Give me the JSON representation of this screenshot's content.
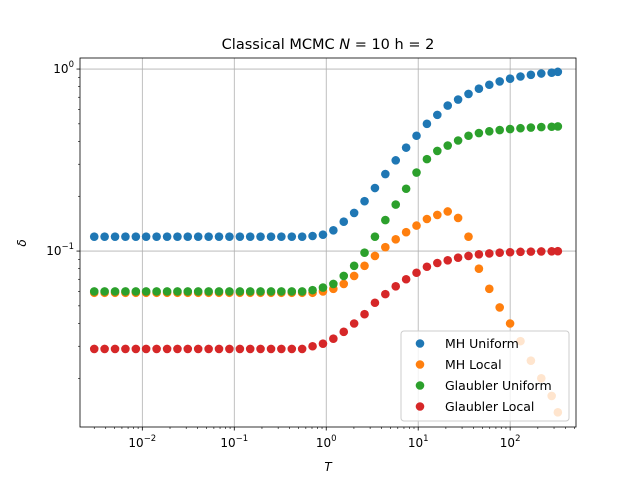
{
  "chart_data": {
    "type": "scatter",
    "title": "Classical MCMC N = 10 h = 2",
    "title_parts": {
      "prefix": "Classical MCMC ",
      "n_symbol": "N",
      "suffix": " =  10 h = 2"
    },
    "xlabel": "T",
    "ylabel": "δ",
    "xscale": "log",
    "yscale": "log",
    "xlim": [
      0.0021,
      520
    ],
    "ylim": [
      0.0108,
      1.15
    ],
    "grid": true,
    "legend_position": "lower-right",
    "x_ticks": [
      {
        "value": 0.01,
        "base": "10",
        "exp": "−2"
      },
      {
        "value": 0.1,
        "base": "10",
        "exp": "−1"
      },
      {
        "value": 1,
        "base": "10",
        "exp": "0"
      },
      {
        "value": 10,
        "base": "10",
        "exp": "1"
      },
      {
        "value": 100,
        "base": "10",
        "exp": "2"
      }
    ],
    "y_ticks": [
      {
        "value": 0.1,
        "base": "10",
        "exp": "−1"
      },
      {
        "value": 1,
        "base": "10",
        "exp": "0"
      }
    ],
    "x": [
      0.003,
      0.00389,
      0.00505,
      0.00655,
      0.0085,
      0.011,
      0.0143,
      0.0186,
      0.0241,
      0.0312,
      0.0405,
      0.0526,
      0.0682,
      0.0885,
      0.115,
      0.149,
      0.193,
      0.251,
      0.325,
      0.422,
      0.547,
      0.71,
      0.921,
      1.195,
      1.55,
      2.011,
      2.609,
      3.385,
      4.392,
      5.697,
      7.391,
      9.589,
      12.44,
      16.14,
      20.94,
      27.16,
      35.24,
      45.72,
      59.31,
      76.94,
      99.82,
      129.5,
      168.0,
      218.0,
      282.8,
      330.0
    ],
    "series": [
      {
        "name": "MH Uniform",
        "color": "#1f77b4",
        "values": [
          0.12,
          0.12,
          0.12,
          0.12,
          0.12,
          0.12,
          0.12,
          0.12,
          0.12,
          0.12,
          0.12,
          0.12,
          0.12,
          0.12,
          0.12,
          0.12,
          0.12,
          0.12,
          0.12,
          0.12,
          0.12,
          0.121,
          0.123,
          0.13,
          0.145,
          0.162,
          0.188,
          0.222,
          0.265,
          0.315,
          0.37,
          0.43,
          0.5,
          0.56,
          0.63,
          0.68,
          0.73,
          0.78,
          0.82,
          0.855,
          0.885,
          0.91,
          0.93,
          0.945,
          0.955,
          0.965
        ]
      },
      {
        "name": "MH Local",
        "color": "#ff7f0e",
        "values": [
          0.059,
          0.059,
          0.059,
          0.059,
          0.059,
          0.059,
          0.059,
          0.059,
          0.059,
          0.059,
          0.059,
          0.059,
          0.059,
          0.059,
          0.059,
          0.059,
          0.059,
          0.059,
          0.059,
          0.059,
          0.059,
          0.059,
          0.06,
          0.062,
          0.066,
          0.073,
          0.083,
          0.094,
          0.105,
          0.116,
          0.127,
          0.138,
          0.15,
          0.158,
          0.165,
          0.152,
          0.12,
          0.08,
          0.062,
          0.049,
          0.04,
          0.032,
          0.025,
          0.02,
          0.016,
          0.013
        ]
      },
      {
        "name": "Glaubler Uniform",
        "color": "#2ca02c",
        "values": [
          0.06,
          0.06,
          0.06,
          0.06,
          0.06,
          0.06,
          0.06,
          0.06,
          0.06,
          0.06,
          0.06,
          0.06,
          0.06,
          0.06,
          0.06,
          0.06,
          0.06,
          0.06,
          0.06,
          0.06,
          0.06,
          0.061,
          0.063,
          0.066,
          0.073,
          0.083,
          0.098,
          0.12,
          0.148,
          0.18,
          0.22,
          0.27,
          0.32,
          0.355,
          0.38,
          0.405,
          0.43,
          0.445,
          0.455,
          0.462,
          0.468,
          0.473,
          0.477,
          0.48,
          0.482,
          0.484
        ]
      },
      {
        "name": "Glaubler Local",
        "color": "#d62728",
        "values": [
          0.029,
          0.029,
          0.029,
          0.029,
          0.029,
          0.029,
          0.029,
          0.029,
          0.029,
          0.029,
          0.029,
          0.029,
          0.029,
          0.029,
          0.029,
          0.029,
          0.029,
          0.029,
          0.029,
          0.029,
          0.029,
          0.03,
          0.031,
          0.033,
          0.036,
          0.04,
          0.045,
          0.052,
          0.058,
          0.064,
          0.07,
          0.076,
          0.082,
          0.086,
          0.089,
          0.092,
          0.094,
          0.096,
          0.097,
          0.098,
          0.0985,
          0.099,
          0.0993,
          0.0995,
          0.0997,
          0.0998
        ]
      }
    ]
  }
}
